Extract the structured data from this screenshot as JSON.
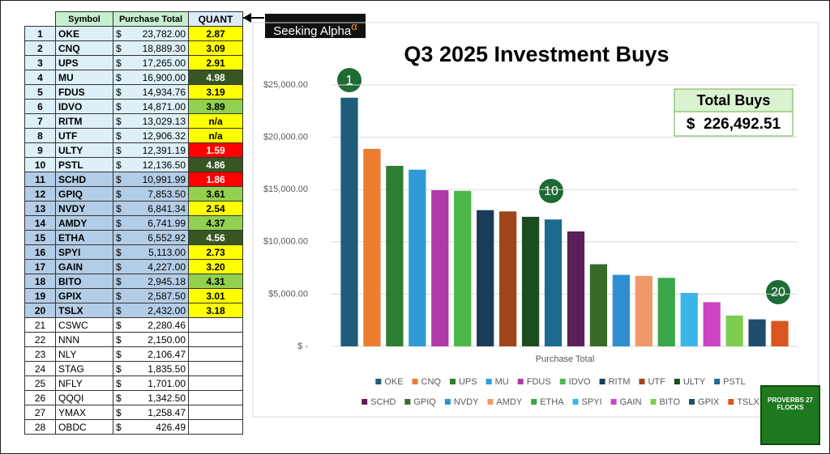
{
  "table": {
    "header": [
      "Symbol",
      "Purchase Total",
      "QUANT"
    ],
    "currency": "$",
    "rows": [
      [
        "1",
        "OKE",
        "23,782.00",
        "2.87"
      ],
      [
        "2",
        "CNQ",
        "18,889.30",
        "3.09"
      ],
      [
        "3",
        "UPS",
        "17,265.00",
        "2.91"
      ],
      [
        "4",
        "MU",
        "16,900.00",
        "4.98"
      ],
      [
        "5",
        "FDUS",
        "14,934.76",
        "3.19"
      ],
      [
        "6",
        "IDVO",
        "14,871.00",
        "3.89"
      ],
      [
        "7",
        "RITM",
        "13,029.13",
        "n/a"
      ],
      [
        "8",
        "UTF",
        "12,906.32",
        "n/a"
      ],
      [
        "9",
        "ULTY",
        "12,391.19",
        "1.59"
      ],
      [
        "10",
        "PSTL",
        "12,136.50",
        "4.86"
      ],
      [
        "11",
        "SCHD",
        "10,991.99",
        "1.86"
      ],
      [
        "12",
        "GPIQ",
        "7,853.50",
        "3.61"
      ],
      [
        "13",
        "NVDY",
        "6,841.34",
        "2.54"
      ],
      [
        "14",
        "AMDY",
        "6,741.99",
        "4.37"
      ],
      [
        "15",
        "ETHA",
        "6,552.92",
        "4.56"
      ],
      [
        "16",
        "SPYI",
        "5,113.00",
        "2.73"
      ],
      [
        "17",
        "GAIN",
        "4,227.00",
        "3.20"
      ],
      [
        "18",
        "BITO",
        "2,945.18",
        "4.31"
      ],
      [
        "19",
        "GPIX",
        "2,587.50",
        "3.01"
      ],
      [
        "20",
        "TSLX",
        "2,432.00",
        "3.18"
      ],
      [
        "21",
        "CSWC",
        "2,280.46",
        null
      ],
      [
        "22",
        "NNN",
        "2,150.00",
        null
      ],
      [
        "23",
        "NLY",
        "2,106.47",
        null
      ],
      [
        "24",
        "STAG",
        "1,835.50",
        null
      ],
      [
        "25",
        "NFLY",
        "1,701.00",
        null
      ],
      [
        "26",
        "QQQI",
        "1,342.50",
        null
      ],
      [
        "27",
        "YMAX",
        "1,258.47",
        null
      ],
      [
        "28",
        "OBDC",
        "426.49",
        null
      ]
    ],
    "quant_colors": [
      "#ffff00",
      "#ffff00",
      "#ffff00",
      "#375623",
      "#ffff00",
      "#92d050",
      "#ffff00",
      "#ffff00",
      "#ff0000",
      "#375623",
      "#ff0000",
      "#92d050",
      "#ffff00",
      "#92d050",
      "#375623",
      "#ffff00",
      "#ffff00",
      "#92d050",
      "#ffff00",
      "#ffff00",
      null,
      null,
      null,
      null,
      null,
      null,
      null,
      null
    ]
  },
  "badge": {
    "text": "Seeking Alpha",
    "sup": "α"
  },
  "logo": "PROVERBS 27 FLOCKS",
  "chart_data": {
    "type": "bar",
    "title": "Q3 2025 Investment Buys",
    "x_label": "Purchase Total",
    "categories": [
      "OKE",
      "CNQ",
      "UPS",
      "MU",
      "FDUS",
      "IDVO",
      "RITM",
      "UTF",
      "ULTY",
      "PSTL",
      "SCHD",
      "GPIQ",
      "NVDY",
      "AMDY",
      "ETHA",
      "SPYI",
      "GAIN",
      "BITO",
      "GPIX",
      "TSLX"
    ],
    "values": [
      23782.0,
      18889.3,
      17265.0,
      16900.0,
      14934.76,
      14871.0,
      13029.13,
      12906.32,
      12391.19,
      12136.5,
      10991.99,
      7853.5,
      6841.34,
      6741.99,
      6552.92,
      5113.0,
      4227.0,
      2945.18,
      2587.5,
      2432.0
    ],
    "colors": [
      "#1f5c7a",
      "#ed7d31",
      "#2e7d32",
      "#2e9bd6",
      "#b03aa8",
      "#4db848",
      "#1a3c5a",
      "#a0461a",
      "#1b4d1f",
      "#1d6a8f",
      "#5c1f5c",
      "#386b2a",
      "#2d8fd0",
      "#f1986a",
      "#3aa648",
      "#3ab5ea",
      "#cc44c2",
      "#7dcc4f",
      "#1f4e6d",
      "#d9571e"
    ],
    "ylim": [
      0,
      25000
    ],
    "yticks": [
      {
        "value": 0,
        "label": "$ -"
      },
      {
        "value": 5000,
        "label": "$5,000.00"
      },
      {
        "value": 10000,
        "label": "$10,000.00"
      },
      {
        "value": 15000,
        "label": "$15,000.00"
      },
      {
        "value": 20000,
        "label": "$20,000.00"
      },
      {
        "value": 25000,
        "label": "$25,000.00"
      }
    ],
    "grid": true,
    "legend": "bottom",
    "annotations": [
      "1",
      "10",
      "20"
    ],
    "total_title": "Total Buys",
    "total_value": "$  226,492.51"
  }
}
